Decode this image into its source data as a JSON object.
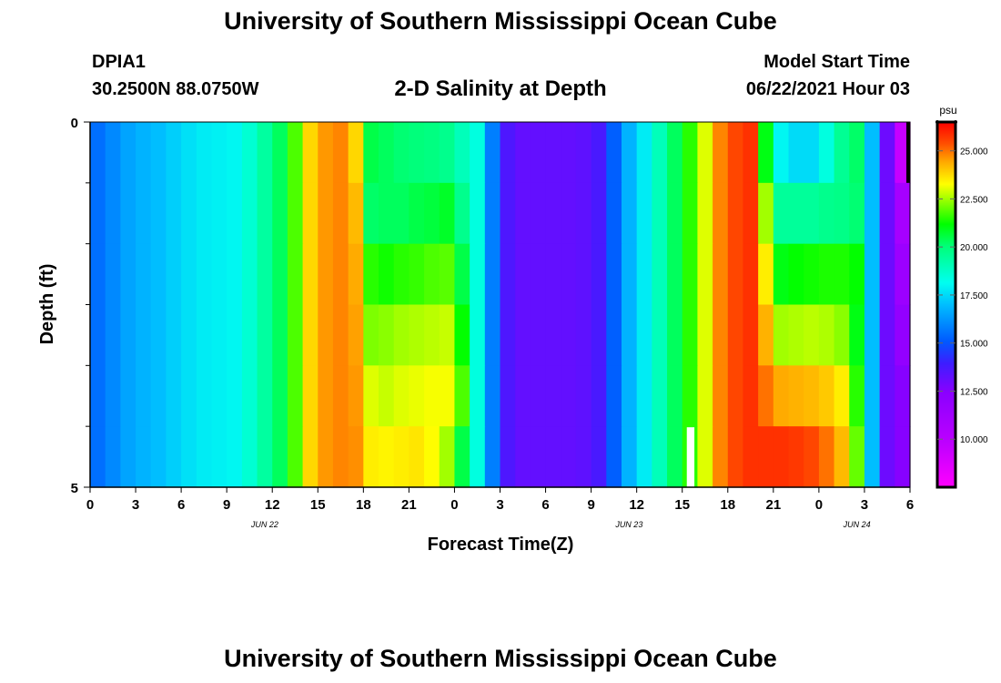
{
  "header": {
    "title": "University of Southern Mississippi Ocean Cube",
    "station_name": "DPIA1",
    "station_coords": "30.2500N  88.0750W",
    "product_title": "2-D Salinity at Depth",
    "model_start_label": "Model Start Time",
    "model_start_time": "06/22/2021 Hour 03"
  },
  "footer": {
    "title": "University of Southern Mississippi Ocean Cube"
  },
  "chart_data": {
    "type": "heatmap",
    "title": "2-D Salinity at Depth",
    "xlabel": "Forecast Time(Z)",
    "ylabel": "Depth (ft)",
    "x_ticks": [
      "0",
      "3",
      "6",
      "9",
      "12",
      "15",
      "18",
      "21",
      "0",
      "3",
      "6",
      "9",
      "12",
      "15",
      "18",
      "21",
      "0",
      "3",
      "6"
    ],
    "x_hours": [
      0,
      54
    ],
    "date_labels": [
      {
        "label": "JUN 22",
        "hour": 11.5
      },
      {
        "label": "JUN 23",
        "hour": 35.5
      },
      {
        "label": "JUN 24",
        "hour": 50.5
      }
    ],
    "y_ticks": [
      "0",
      "5"
    ],
    "ylim": [
      0,
      5
    ],
    "depth_levels": 5,
    "colorbar": {
      "unit": "psu",
      "vmin": 7.5,
      "vmax": 26.5,
      "tick_values": [
        10.0,
        12.5,
        15.0,
        17.5,
        20.0,
        22.5,
        25.0
      ],
      "tick_labels": [
        "10.000",
        "12.500",
        "15.000",
        "17.500",
        "20.000",
        "22.500",
        "25.000"
      ]
    },
    "salinity_psu_by_hour": [
      [
        15.5,
        16.0,
        16.5,
        16.8,
        17.0,
        17.3,
        17.6,
        17.8,
        17.9,
        18.0,
        18.6,
        19.4,
        20.3,
        21.8,
        23.8,
        24.6,
        24.8,
        23.8,
        20.5,
        20.3,
        20.1,
        20.0,
        19.9,
        19.7,
        19.0,
        18.4,
        15.8,
        13.6,
        13.2,
        13.2,
        13.2,
        13.2,
        13.3,
        13.7,
        15.2,
        16.8,
        17.8,
        19.0,
        20.3,
        21.5,
        23.0,
        24.8,
        25.5,
        25.8,
        21.0,
        18.0,
        17.5,
        17.5,
        18.4,
        19.6,
        20.2,
        17.0,
        13.0,
        9.5,
        8.6
      ],
      [
        15.5,
        16.0,
        16.5,
        16.8,
        17.0,
        17.3,
        17.6,
        17.8,
        17.9,
        18.0,
        18.6,
        19.4,
        20.3,
        21.8,
        23.8,
        24.6,
        24.8,
        24.2,
        20.2,
        20.3,
        20.3,
        20.5,
        20.6,
        20.8,
        19.7,
        18.4,
        15.8,
        13.6,
        13.2,
        13.2,
        13.2,
        13.2,
        13.3,
        13.7,
        15.2,
        16.8,
        17.8,
        19.0,
        20.3,
        21.5,
        23.0,
        24.8,
        25.5,
        25.8,
        22.5,
        19.5,
        19.5,
        19.5,
        19.7,
        19.8,
        20.1,
        17.0,
        13.0,
        11.0,
        10.5
      ],
      [
        15.5,
        16.0,
        16.5,
        16.8,
        17.0,
        17.3,
        17.6,
        17.8,
        17.9,
        18.0,
        18.6,
        19.4,
        20.3,
        21.8,
        23.8,
        24.6,
        24.8,
        24.4,
        21.5,
        21.3,
        21.5,
        21.6,
        21.8,
        21.9,
        20.5,
        18.4,
        15.8,
        13.6,
        13.2,
        13.2,
        13.2,
        13.2,
        13.3,
        13.7,
        15.2,
        16.8,
        17.8,
        19.0,
        20.3,
        21.5,
        23.0,
        24.8,
        25.5,
        25.8,
        23.5,
        21.0,
        21.2,
        21.3,
        21.4,
        21.4,
        21.2,
        17.0,
        13.0,
        11.5,
        11.0
      ],
      [
        15.5,
        16.0,
        16.5,
        16.8,
        17.0,
        17.3,
        17.6,
        17.8,
        17.9,
        18.0,
        18.6,
        19.4,
        20.3,
        21.8,
        23.8,
        24.6,
        24.8,
        24.5,
        22.2,
        22.3,
        22.5,
        22.6,
        22.7,
        22.8,
        21.2,
        18.4,
        15.8,
        13.6,
        13.2,
        13.2,
        13.2,
        13.2,
        13.3,
        13.7,
        15.2,
        16.8,
        17.8,
        19.0,
        20.3,
        21.5,
        23.0,
        24.8,
        25.5,
        25.8,
        24.3,
        22.5,
        22.6,
        22.7,
        22.6,
        22.3,
        21.0,
        17.0,
        13.0,
        12.0,
        11.5
      ],
      [
        15.5,
        16.0,
        16.5,
        16.8,
        17.0,
        17.3,
        17.6,
        17.8,
        17.9,
        18.0,
        18.6,
        19.4,
        20.3,
        21.8,
        23.8,
        24.6,
        24.8,
        24.6,
        23.0,
        22.8,
        23.0,
        23.1,
        23.2,
        23.2,
        21.8,
        18.4,
        15.8,
        13.6,
        13.2,
        13.2,
        13.2,
        13.2,
        13.3,
        13.7,
        15.2,
        16.8,
        17.8,
        19.0,
        20.3,
        21.5,
        23.0,
        24.8,
        25.5,
        25.8,
        25.0,
        24.4,
        24.3,
        24.2,
        24.0,
        23.5,
        21.5,
        17.0,
        13.0,
        12.5,
        12.0
      ],
      [
        15.5,
        16.0,
        16.5,
        16.8,
        17.0,
        17.3,
        17.6,
        17.8,
        17.9,
        18.0,
        18.6,
        19.4,
        20.3,
        21.8,
        23.8,
        24.6,
        24.8,
        24.7,
        23.5,
        23.4,
        23.5,
        23.6,
        23.3,
        22.5,
        20.5,
        18.4,
        15.8,
        13.6,
        13.2,
        13.2,
        13.2,
        13.2,
        13.3,
        13.7,
        15.2,
        16.8,
        17.8,
        19.0,
        20.3,
        21.5,
        23.0,
        24.8,
        25.5,
        25.8,
        25.8,
        25.8,
        25.7,
        25.5,
        25.0,
        24.2,
        22.0,
        17.0,
        13.0,
        12.5,
        12.0
      ]
    ],
    "missing_cells": [
      {
        "hour": 39,
        "level": 5
      }
    ],
    "no_data_cells": [
      {
        "hour": 54,
        "level": 0
      }
    ]
  }
}
